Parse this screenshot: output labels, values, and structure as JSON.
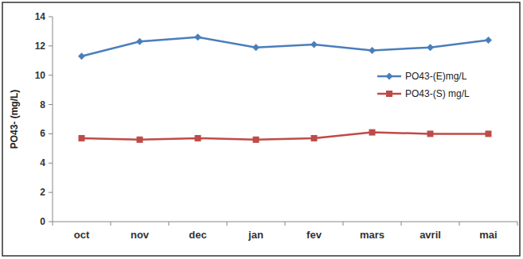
{
  "chart_data": {
    "type": "line",
    "y_label": "PO43- (mg/L)",
    "categories": [
      "oct",
      "nov",
      "dec",
      "jan",
      "fev",
      "mars",
      "avril",
      "mai"
    ],
    "series": [
      {
        "name": "PO43-(E)mg/L",
        "color": "#4a7ebb",
        "marker": "diamond",
        "values": [
          11.3,
          12.3,
          12.6,
          11.9,
          12.1,
          11.7,
          11.9,
          12.4
        ]
      },
      {
        "name": "PO43-(S) mg/L",
        "color": "#be4b48",
        "marker": "square",
        "values": [
          5.7,
          5.6,
          5.7,
          5.6,
          5.7,
          6.1,
          6.0,
          6.0
        ]
      }
    ],
    "ylim": [
      0,
      14
    ],
    "yticks": [
      0,
      2,
      4,
      6,
      8,
      10,
      12,
      14
    ],
    "grid": false,
    "legend": "right"
  }
}
